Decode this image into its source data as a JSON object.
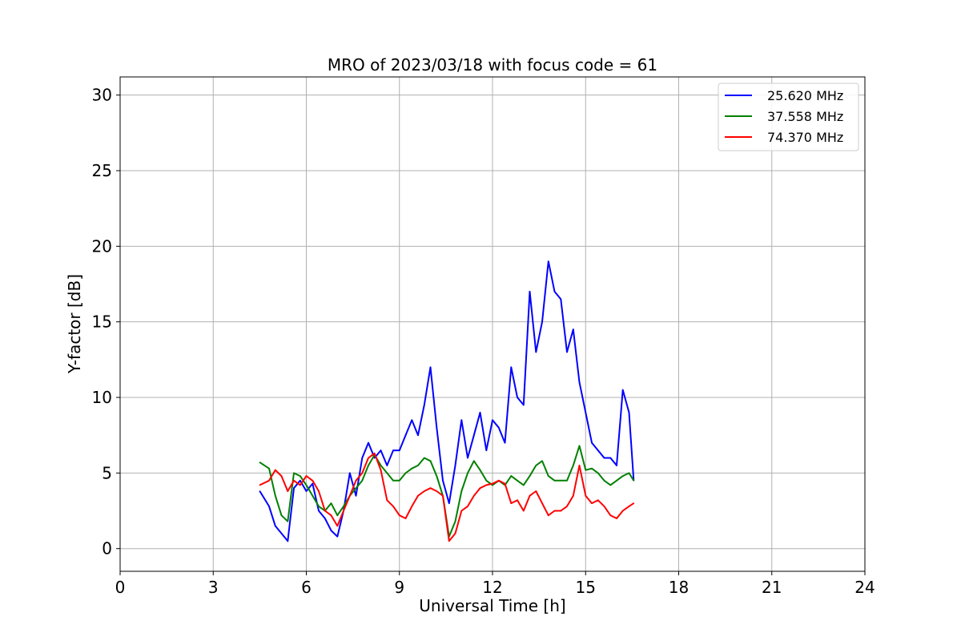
{
  "chart_data": {
    "type": "line",
    "title": "MRO of 2023/03/18 with focus code = 61",
    "xlabel": "Universal Time [h]",
    "ylabel": "Y-factor [dB]",
    "xlim": [
      0,
      24
    ],
    "ylim": [
      -1.5,
      31.2
    ],
    "xticks": [
      0,
      3,
      6,
      9,
      12,
      15,
      18,
      21,
      24
    ],
    "yticks": [
      0,
      5,
      10,
      15,
      20,
      25,
      30
    ],
    "grid": true,
    "legend_position": "top-right",
    "series": [
      {
        "name": "25.620 MHz",
        "color": "#0000ff",
        "x": [
          4.5,
          4.8,
          5.0,
          5.2,
          5.4,
          5.6,
          5.8,
          6.0,
          6.2,
          6.4,
          6.6,
          6.8,
          7.0,
          7.2,
          7.4,
          7.6,
          7.8,
          8.0,
          8.2,
          8.4,
          8.6,
          8.8,
          9.0,
          9.2,
          9.4,
          9.6,
          9.8,
          10.0,
          10.2,
          10.4,
          10.6,
          10.8,
          11.0,
          11.2,
          11.4,
          11.6,
          11.8,
          12.0,
          12.2,
          12.4,
          12.6,
          12.8,
          13.0,
          13.2,
          13.4,
          13.6,
          13.8,
          14.0,
          14.2,
          14.4,
          14.6,
          14.8,
          15.0,
          15.2,
          15.4,
          15.6,
          15.8,
          16.0,
          16.2,
          16.4,
          16.55
        ],
        "y": [
          3.8,
          2.8,
          1.5,
          1.0,
          0.5,
          4.0,
          4.5,
          3.8,
          4.3,
          2.5,
          2.0,
          1.2,
          0.8,
          2.5,
          5.0,
          3.5,
          6.0,
          7.0,
          6.0,
          6.5,
          5.5,
          6.5,
          6.5,
          7.5,
          8.5,
          7.5,
          9.5,
          12.0,
          8.0,
          4.5,
          3.0,
          5.5,
          8.5,
          6.0,
          7.5,
          9.0,
          6.5,
          8.5,
          8.0,
          7.0,
          12.0,
          10.0,
          9.5,
          17.0,
          13.0,
          15.0,
          19.0,
          17.0,
          16.5,
          13.0,
          14.5,
          11.0,
          9.0,
          7.0,
          6.5,
          6.0,
          6.0,
          5.5,
          10.5,
          9.0,
          4.5
        ]
      },
      {
        "name": "37.558 MHz",
        "color": "#008000",
        "x": [
          4.5,
          4.8,
          5.0,
          5.2,
          5.4,
          5.6,
          5.8,
          6.0,
          6.2,
          6.4,
          6.6,
          6.8,
          7.0,
          7.2,
          7.4,
          7.6,
          7.8,
          8.0,
          8.2,
          8.4,
          8.6,
          8.8,
          9.0,
          9.2,
          9.4,
          9.6,
          9.8,
          10.0,
          10.2,
          10.4,
          10.6,
          10.8,
          11.0,
          11.2,
          11.4,
          11.6,
          11.8,
          12.0,
          12.2,
          12.4,
          12.6,
          12.8,
          13.0,
          13.2,
          13.4,
          13.6,
          13.8,
          14.0,
          14.2,
          14.4,
          14.6,
          14.8,
          15.0,
          15.2,
          15.4,
          15.6,
          15.8,
          16.0,
          16.2,
          16.4,
          16.55
        ],
        "y": [
          5.7,
          5.3,
          3.5,
          2.2,
          1.8,
          5.0,
          4.8,
          4.2,
          3.5,
          2.8,
          2.5,
          3.0,
          2.2,
          2.8,
          3.5,
          4.0,
          4.5,
          5.5,
          6.2,
          5.5,
          5.0,
          4.5,
          4.5,
          5.0,
          5.3,
          5.5,
          6.0,
          5.8,
          4.8,
          3.5,
          0.8,
          1.8,
          3.8,
          5.0,
          5.8,
          5.2,
          4.5,
          4.2,
          4.5,
          4.2,
          4.8,
          4.5,
          4.2,
          4.8,
          5.5,
          5.8,
          4.8,
          4.5,
          4.5,
          4.5,
          5.5,
          6.8,
          5.2,
          5.3,
          5.0,
          4.5,
          4.2,
          4.5,
          4.8,
          5.0,
          4.5
        ]
      },
      {
        "name": "74.370 MHz",
        "color": "#ff0000",
        "x": [
          4.5,
          4.8,
          5.0,
          5.2,
          5.4,
          5.6,
          5.8,
          6.0,
          6.2,
          6.4,
          6.6,
          6.8,
          7.0,
          7.2,
          7.4,
          7.6,
          7.8,
          8.0,
          8.2,
          8.4,
          8.6,
          8.8,
          9.0,
          9.2,
          9.4,
          9.6,
          9.8,
          10.0,
          10.2,
          10.4,
          10.6,
          10.8,
          11.0,
          11.2,
          11.4,
          11.6,
          11.8,
          12.0,
          12.2,
          12.4,
          12.6,
          12.8,
          13.0,
          13.2,
          13.4,
          13.6,
          13.8,
          14.0,
          14.2,
          14.4,
          14.6,
          14.8,
          15.0,
          15.2,
          15.4,
          15.6,
          15.8,
          16.0,
          16.2,
          16.4,
          16.55
        ],
        "y": [
          4.2,
          4.5,
          5.2,
          4.8,
          3.8,
          4.5,
          4.2,
          4.8,
          4.5,
          3.8,
          2.5,
          2.2,
          1.5,
          2.5,
          3.5,
          4.5,
          5.0,
          6.0,
          6.3,
          5.2,
          3.2,
          2.8,
          2.2,
          2.0,
          2.8,
          3.5,
          3.8,
          4.0,
          3.8,
          3.5,
          0.5,
          1.0,
          2.5,
          2.8,
          3.5,
          4.0,
          4.2,
          4.3,
          4.5,
          4.3,
          3.0,
          3.2,
          2.5,
          3.5,
          3.8,
          3.0,
          2.2,
          2.5,
          2.5,
          2.8,
          3.5,
          5.5,
          3.5,
          3.0,
          3.2,
          2.8,
          2.2,
          2.0,
          2.5,
          2.8,
          3.0
        ]
      }
    ]
  }
}
